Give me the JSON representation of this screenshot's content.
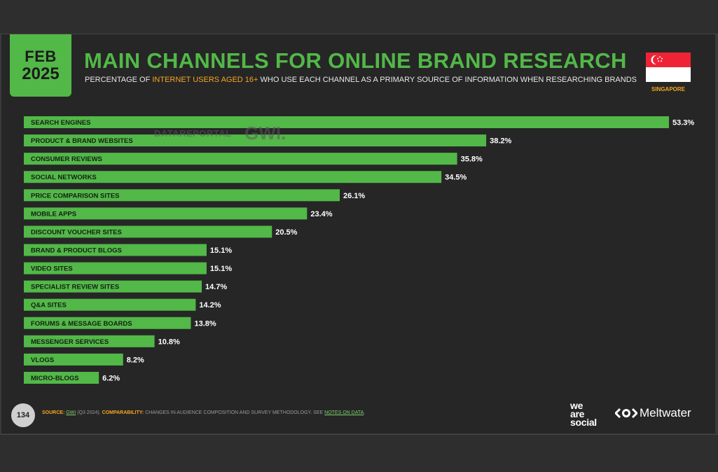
{
  "header": {
    "month": "FEB",
    "year": "2025",
    "title": "MAIN CHANNELS FOR ONLINE BRAND RESEARCH",
    "subtitle_pre": "PERCENTAGE OF",
    "subtitle_highlight": "INTERNET USERS AGED 16+",
    "subtitle_post": "WHO USE EACH CHANNEL AS A PRIMARY SOURCE OF INFORMATION WHEN RESEARCHING BRANDS",
    "country": "SINGAPORE"
  },
  "watermark": {
    "left": "DATAREPORTAL",
    "right": "GWI."
  },
  "colors": {
    "accent": "#52b848",
    "highlight": "#f5a623",
    "background": "#262626",
    "flag_red": "#ee2436",
    "flag_white": "#ffffff"
  },
  "icons": {
    "flag": "singapore-flag-icon"
  },
  "chart_data": {
    "type": "bar",
    "orientation": "horizontal",
    "categories": [
      "SEARCH ENGINES",
      "PRODUCT & BRAND WEBSITES",
      "CONSUMER REVIEWS",
      "SOCIAL NETWORKS",
      "PRICE COMPARISON SITES",
      "MOBILE APPS",
      "DISCOUNT VOUCHER SITES",
      "BRAND & PRODUCT BLOGS",
      "VIDEO SITES",
      "SPECIALIST REVIEW SITES",
      "Q&A SITES",
      "FORUMS & MESSAGE BOARDS",
      "MESSENGER SERVICES",
      "VLOGS",
      "MICRO-BLOGS"
    ],
    "values": [
      53.3,
      38.2,
      35.8,
      34.5,
      26.1,
      23.4,
      20.5,
      15.1,
      15.1,
      14.7,
      14.2,
      13.8,
      10.8,
      8.2,
      6.2
    ],
    "value_labels": [
      "53.3%",
      "38.2%",
      "35.8%",
      "34.5%",
      "26.1%",
      "23.4%",
      "20.5%",
      "15.1%",
      "15.1%",
      "14.7%",
      "14.2%",
      "13.8%",
      "10.8%",
      "8.2%",
      "6.2%"
    ],
    "xlim": [
      0,
      53.3
    ],
    "grid": false,
    "legend": "none",
    "bar_color": "#52b848"
  },
  "footer": {
    "page_number": "134",
    "source_label": "SOURCE:",
    "source_link": "GWI",
    "source_detail": "(Q3 2024).",
    "comparability_label": "COMPARABILITY:",
    "comparability_text": "CHANGES IN AUDIENCE COMPOSITION AND SURVEY METHODOLOGY. SEE",
    "notes_link": "NOTES ON DATA",
    "notes_end": ".",
    "brand_we": "we",
    "brand_are": "are",
    "brand_social": "social",
    "brand_meltwater": "Meltwater"
  }
}
